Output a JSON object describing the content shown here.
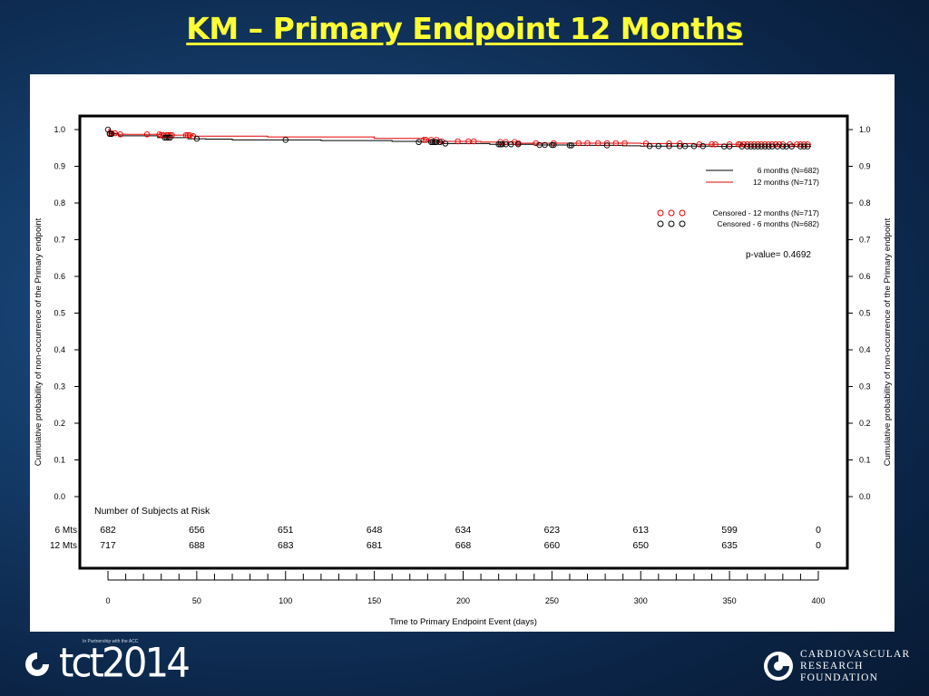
{
  "slide": {
    "title": "KM – Primary Endpoint 12 Months"
  },
  "colors": {
    "background": "#133a66",
    "title": "#ffff33",
    "series_6_months": "#000000",
    "series_12_months": "#e60000"
  },
  "chart_data": {
    "type": "line",
    "subtype": "kaplan-meier",
    "title": "",
    "xlabel": "Time to Primary Endpoint Event (days)",
    "ylabel": "Cumulative probability of non-occurrence of the Primary endpoint",
    "xlim": [
      0,
      400
    ],
    "ylim": [
      0,
      1.0
    ],
    "xticks": [
      0,
      50,
      100,
      150,
      200,
      250,
      300,
      350,
      400
    ],
    "yticks": [
      "0.0",
      "0.1",
      "0.2",
      "0.3",
      "0.4",
      "0.5",
      "0.6",
      "0.7",
      "0.8",
      "0.9",
      "1.0"
    ],
    "grid": false,
    "legend_position": "top-right",
    "series": [
      {
        "name": "6 months (N=682)",
        "color": "#000000",
        "steps": [
          [
            0,
            1.0
          ],
          [
            1,
            0.988
          ],
          [
            6,
            0.983
          ],
          [
            28,
            0.978
          ],
          [
            45,
            0.975
          ],
          [
            55,
            0.974
          ],
          [
            70,
            0.972
          ],
          [
            120,
            0.97
          ],
          [
            160,
            0.968
          ],
          [
            175,
            0.966
          ],
          [
            188,
            0.962
          ],
          [
            215,
            0.96
          ],
          [
            240,
            0.958
          ],
          [
            260,
            0.957
          ],
          [
            290,
            0.956
          ],
          [
            300,
            0.955
          ],
          [
            320,
            0.955
          ],
          [
            340,
            0.954
          ],
          [
            396,
            0.954
          ]
        ],
        "censored": [
          0,
          1,
          2,
          32,
          33,
          34,
          35,
          50,
          100,
          175,
          182,
          183,
          184,
          185,
          187,
          190,
          220,
          221,
          222,
          224,
          227,
          231,
          243,
          246,
          250,
          251,
          260,
          261,
          281,
          305,
          310,
          316,
          322,
          325,
          330,
          335,
          347,
          350,
          357,
          360,
          362,
          364,
          366,
          368,
          370,
          372,
          374,
          377,
          380,
          382,
          385,
          390,
          392,
          394
        ]
      },
      {
        "name": "12 months (N=717)",
        "color": "#e60000",
        "steps": [
          [
            0,
            1.0
          ],
          [
            1,
            0.99
          ],
          [
            5,
            0.987
          ],
          [
            30,
            0.985
          ],
          [
            48,
            0.982
          ],
          [
            90,
            0.98
          ],
          [
            150,
            0.976
          ],
          [
            178,
            0.972
          ],
          [
            186,
            0.968
          ],
          [
            210,
            0.966
          ],
          [
            230,
            0.963
          ],
          [
            300,
            0.962
          ],
          [
            330,
            0.96
          ],
          [
            396,
            0.96
          ]
        ],
        "censored": [
          1,
          2,
          4,
          7,
          22,
          29,
          30,
          31,
          33,
          34,
          35,
          36,
          44,
          45,
          46,
          48,
          178,
          179,
          182,
          185,
          188,
          197,
          203,
          206,
          221,
          224,
          229,
          231,
          241,
          251,
          265,
          270,
          276,
          281,
          286,
          291,
          303,
          316,
          322,
          333,
          340,
          342,
          350,
          355,
          356,
          358,
          360,
          362,
          364,
          366,
          368,
          370,
          372,
          374,
          376,
          378,
          380,
          384,
          388,
          390,
          392,
          394
        ]
      }
    ],
    "legend": {
      "lines": [
        "6 months (N=682)",
        "12 months (N=717)"
      ],
      "censored": [
        "Censored - 12 months (N=717)",
        "Censored - 6 months (N=682)"
      ]
    },
    "annotation": "p-value= 0.4692",
    "risk_table": {
      "header": "Number of Subjects at Risk",
      "time_points": [
        0,
        50,
        100,
        150,
        200,
        250,
        300,
        350,
        400
      ],
      "rows": [
        {
          "label": "6 Mts",
          "values": [
            "682",
            "656",
            "651",
            "648",
            "634",
            "623",
            "613",
            "599",
            "0"
          ]
        },
        {
          "label": "12 Mts",
          "values": [
            "717",
            "688",
            "683",
            "681",
            "668",
            "660",
            "650",
            "635",
            "0"
          ]
        }
      ]
    }
  },
  "footer": {
    "logo_text": "tct2014",
    "logo_tagline": "In Partnership with the ACC",
    "org_lines": [
      "CARDIOVASCULAR",
      "RESEARCH",
      "FOUNDATION"
    ]
  }
}
